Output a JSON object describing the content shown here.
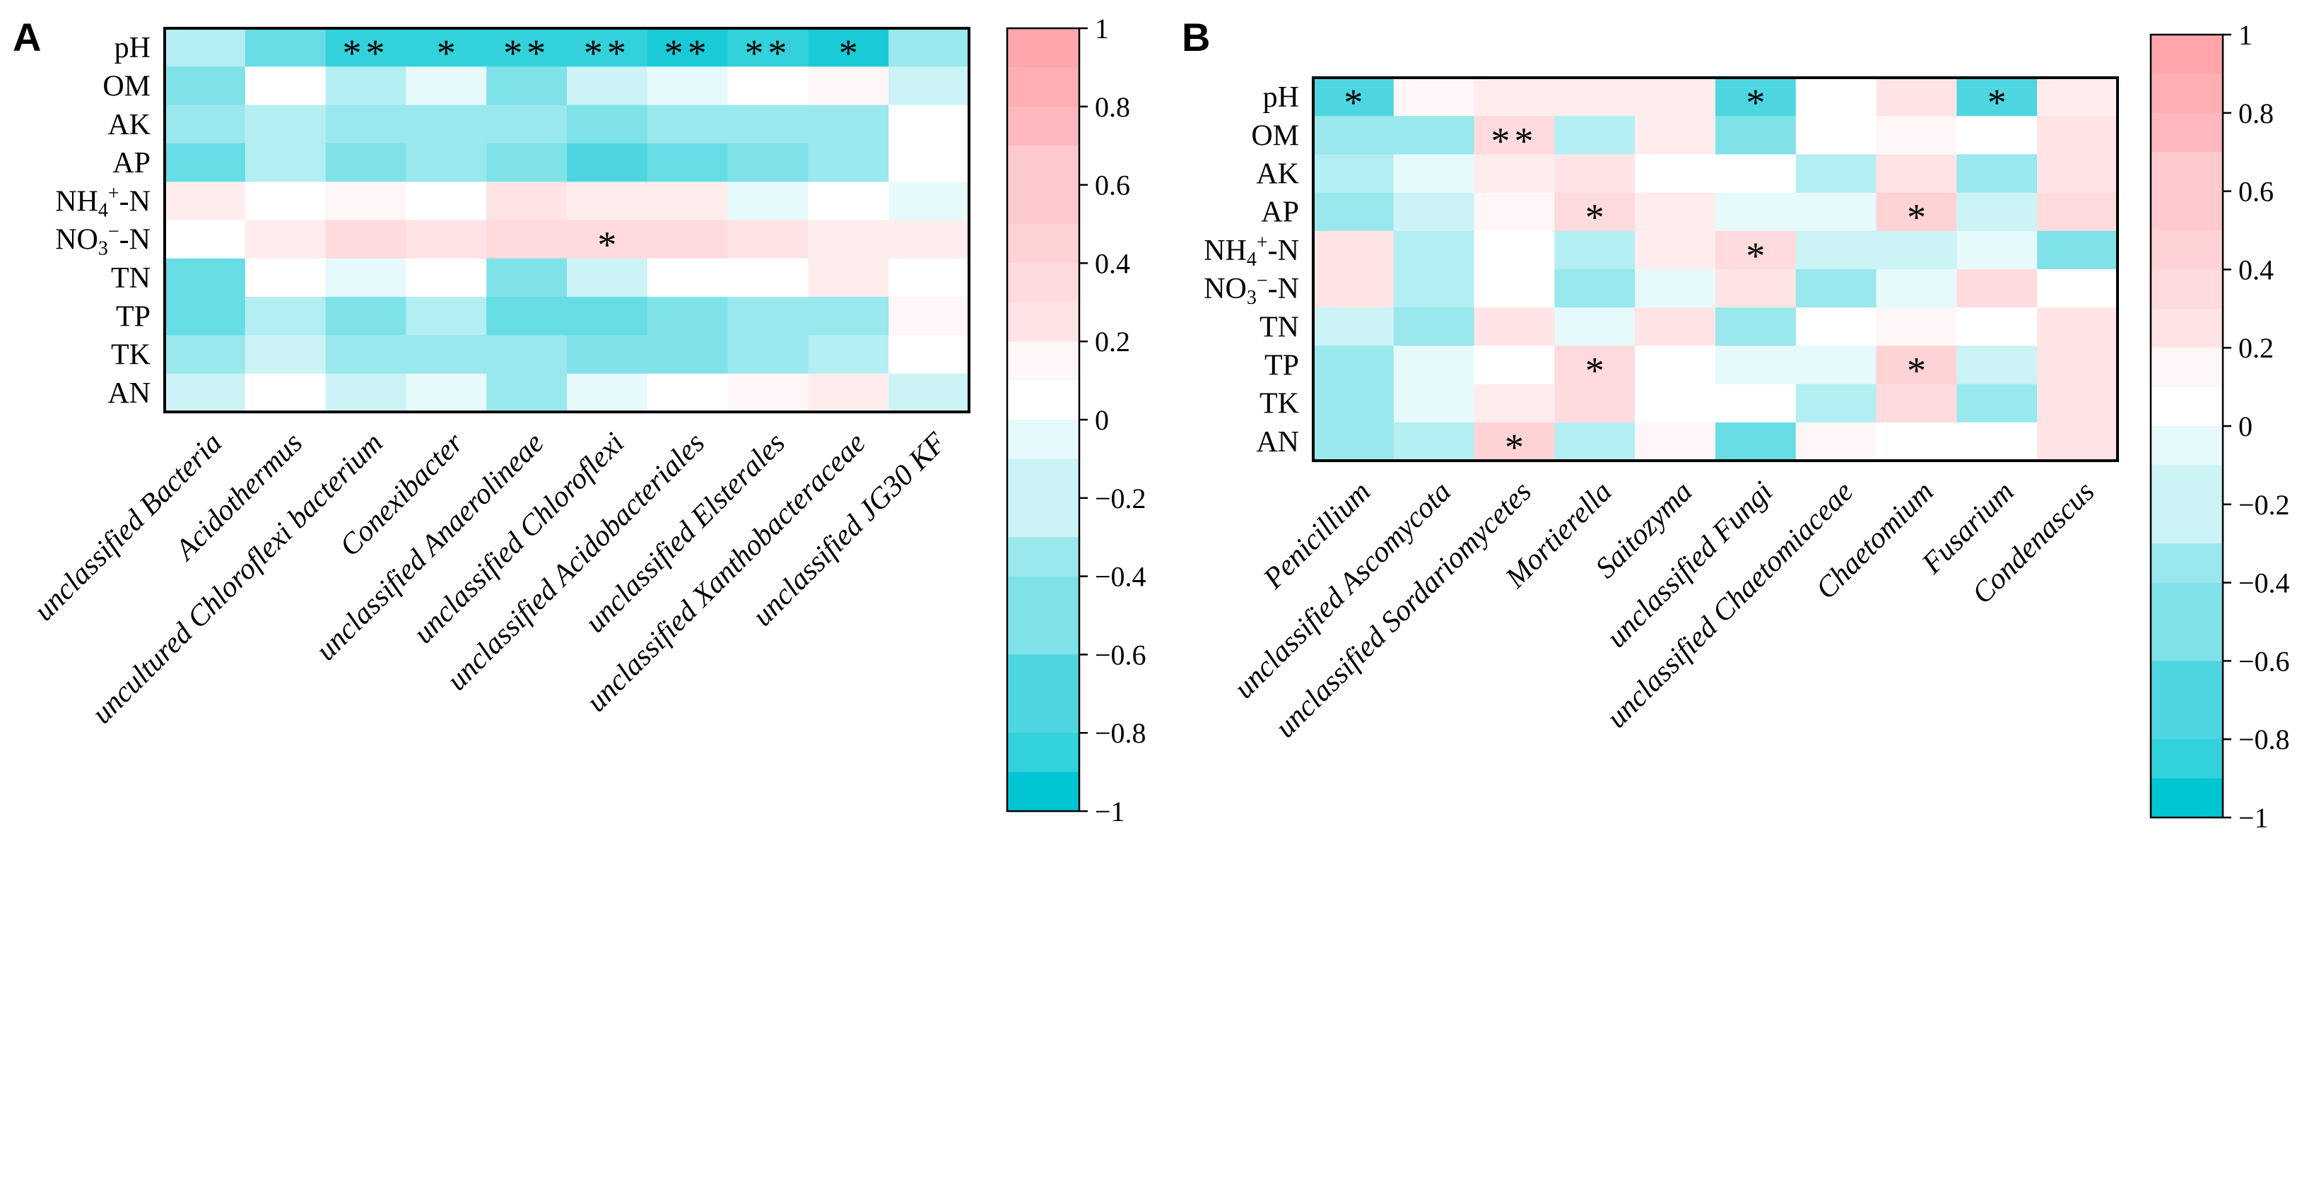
{
  "chart_data": [
    {
      "type": "heatmap",
      "panel_label": "A",
      "rows": [
        "pH",
        "OM",
        "AK",
        "AP",
        "NH4+-N",
        "NO3−-N",
        "TN",
        "TP",
        "TK",
        "AN"
      ],
      "row_labels_rich": [
        [
          {
            "t": "pH"
          }
        ],
        [
          {
            "t": "OM"
          }
        ],
        [
          {
            "t": "AK"
          }
        ],
        [
          {
            "t": "AP"
          }
        ],
        [
          {
            "t": "NH"
          },
          {
            "t": "4",
            "sub": true
          },
          {
            "t": "+",
            "sup": true
          },
          {
            "t": "-N"
          }
        ],
        [
          {
            "t": "NO"
          },
          {
            "t": "3",
            "sub": true
          },
          {
            "t": "−",
            "sup": true
          },
          {
            "t": "-N"
          }
        ],
        [
          {
            "t": "TN"
          }
        ],
        [
          {
            "t": "TP"
          }
        ],
        [
          {
            "t": "TK"
          }
        ],
        [
          {
            "t": "AN"
          }
        ]
      ],
      "columns": [
        "unclassified Bacteria",
        "Acidothermus",
        "uncultured Chloroflexi bacterium",
        "Conexibacter",
        "unclassified Anaerolineae",
        "unclassified Chloroflexi",
        "unclassified Acidobacteriales",
        "unclassified Elsterales",
        "unclassified Xanthobacteraceae",
        "unclassified JG30 KF"
      ],
      "values": [
        [
          -0.35,
          -0.6,
          -0.85,
          -0.8,
          -0.85,
          -0.85,
          -0.9,
          -0.85,
          -0.95,
          -0.4
        ],
        [
          -0.5,
          -0.05,
          -0.35,
          -0.15,
          -0.5,
          -0.2,
          -0.1,
          0.0,
          0.1,
          -0.2
        ],
        [
          -0.4,
          -0.3,
          -0.4,
          -0.4,
          -0.4,
          -0.5,
          -0.45,
          -0.4,
          -0.4,
          0.0
        ],
        [
          -0.65,
          -0.35,
          -0.5,
          -0.4,
          -0.5,
          -0.7,
          -0.6,
          -0.5,
          -0.4,
          0.0
        ],
        [
          0.15,
          0.0,
          0.1,
          0.0,
          0.3,
          0.15,
          0.15,
          -0.1,
          0.0,
          -0.15
        ],
        [
          0.0,
          0.2,
          0.35,
          0.25,
          0.35,
          0.35,
          0.35,
          0.25,
          0.2,
          0.2
        ],
        [
          -0.6,
          0.0,
          -0.1,
          0.0,
          -0.55,
          -0.2,
          0.0,
          0.0,
          0.2,
          -0.05
        ],
        [
          -0.6,
          -0.35,
          -0.55,
          -0.3,
          -0.6,
          -0.65,
          -0.55,
          -0.4,
          -0.45,
          0.1
        ],
        [
          -0.4,
          -0.25,
          -0.45,
          -0.4,
          -0.45,
          -0.55,
          -0.5,
          -0.4,
          -0.35,
          0.0
        ],
        [
          -0.2,
          0.0,
          -0.2,
          -0.1,
          -0.4,
          -0.1,
          0.0,
          0.1,
          0.15,
          -0.2
        ]
      ],
      "significance": [
        [
          "",
          "",
          "**",
          "*",
          "**",
          "**",
          "**",
          "**",
          "*",
          ""
        ],
        [
          "",
          "",
          "",
          "",
          "",
          "",
          "",
          "",
          "",
          ""
        ],
        [
          "",
          "",
          "",
          "",
          "",
          "",
          "",
          "",
          "",
          ""
        ],
        [
          "",
          "",
          "",
          "",
          "",
          "",
          "",
          "",
          "",
          ""
        ],
        [
          "",
          "",
          "",
          "",
          "",
          "",
          "",
          "",
          "",
          ""
        ],
        [
          "",
          "",
          "",
          "",
          "",
          "*",
          "",
          "",
          "",
          ""
        ],
        [
          "",
          "",
          "",
          "",
          "",
          "",
          "",
          "",
          "",
          ""
        ],
        [
          "",
          "",
          "",
          "",
          "",
          "",
          "",
          "",
          "",
          ""
        ],
        [
          "",
          "",
          "",
          "",
          "",
          "",
          "",
          "",
          "",
          ""
        ],
        [
          "",
          "",
          "",
          "",
          "",
          "",
          "",
          "",
          "",
          ""
        ]
      ],
      "colorbar": {
        "range": [
          -1,
          1
        ],
        "ticks": [
          "1",
          "0.8",
          "0.6",
          "0.4",
          "0.2",
          "0",
          "−0.2",
          "−0.4",
          "−0.6",
          "−0.8",
          "−1"
        ]
      },
      "colors": {
        "negative": "#00c5d3",
        "zero": "#ffffff",
        "positive": "#ffa6ac"
      }
    },
    {
      "type": "heatmap",
      "panel_label": "B",
      "rows": [
        "pH",
        "OM",
        "AK",
        "AP",
        "NH4+-N",
        "NO3−-N",
        "TN",
        "TP",
        "TK",
        "AN"
      ],
      "row_labels_rich": [
        [
          {
            "t": "pH"
          }
        ],
        [
          {
            "t": "OM"
          }
        ],
        [
          {
            "t": "AK"
          }
        ],
        [
          {
            "t": "AP"
          }
        ],
        [
          {
            "t": "NH"
          },
          {
            "t": "4",
            "sub": true
          },
          {
            "t": "+",
            "sup": true
          },
          {
            "t": "-N"
          }
        ],
        [
          {
            "t": "NO"
          },
          {
            "t": "3",
            "sub": true
          },
          {
            "t": "−",
            "sup": true
          },
          {
            "t": "-N"
          }
        ],
        [
          {
            "t": "TN"
          }
        ],
        [
          {
            "t": "TP"
          }
        ],
        [
          {
            "t": "TK"
          }
        ],
        [
          {
            "t": "AN"
          }
        ]
      ],
      "columns": [
        "Penicillium",
        "unclassified Ascomycota",
        "unclassified Sordariomycetes",
        "Mortierella",
        "Saitozyma",
        "unclassified Fungi",
        "unclassified Chaetomiaceae",
        "Chaetomium",
        "Fusarium",
        "Condenascus"
      ],
      "values": [
        [
          -0.75,
          0.1,
          0.2,
          0.15,
          0.15,
          -0.7,
          0.0,
          0.3,
          -0.75,
          0.15
        ],
        [
          -0.4,
          -0.4,
          0.35,
          -0.3,
          0.15,
          -0.55,
          0.0,
          0.1,
          -0.05,
          0.3
        ],
        [
          -0.3,
          -0.15,
          0.15,
          0.3,
          0.0,
          0.0,
          -0.3,
          0.3,
          -0.45,
          0.25
        ],
        [
          -0.4,
          -0.2,
          0.1,
          0.4,
          0.15,
          -0.15,
          -0.15,
          0.45,
          -0.2,
          0.35
        ],
        [
          0.3,
          -0.3,
          0.0,
          -0.3,
          0.15,
          0.35,
          -0.25,
          -0.2,
          -0.15,
          -0.55
        ],
        [
          0.25,
          -0.3,
          -0.05,
          -0.4,
          -0.15,
          0.25,
          -0.4,
          -0.1,
          0.35,
          0.0
        ],
        [
          -0.2,
          -0.45,
          0.25,
          -0.15,
          0.3,
          -0.4,
          0.0,
          0.1,
          0.0,
          0.3
        ],
        [
          -0.4,
          -0.1,
          0.0,
          0.4,
          0.0,
          -0.15,
          -0.15,
          0.45,
          -0.2,
          0.3
        ],
        [
          -0.4,
          -0.1,
          0.2,
          0.35,
          0.0,
          0.0,
          -0.35,
          0.35,
          -0.4,
          0.25
        ],
        [
          -0.4,
          -0.3,
          0.45,
          -0.3,
          0.1,
          -0.6,
          0.1,
          -0.05,
          0.0,
          0.3
        ]
      ],
      "significance": [
        [
          "*",
          "",
          "",
          "",
          "",
          "*",
          "",
          "",
          "*",
          ""
        ],
        [
          "",
          "",
          "**",
          "",
          "",
          "",
          "",
          "",
          "",
          ""
        ],
        [
          "",
          "",
          "",
          "",
          "",
          "",
          "",
          "",
          "",
          ""
        ],
        [
          "",
          "",
          "",
          "*",
          "",
          "",
          "",
          "*",
          "",
          ""
        ],
        [
          "",
          "",
          "",
          "",
          "",
          "*",
          "",
          "",
          "",
          ""
        ],
        [
          "",
          "",
          "",
          "",
          "",
          "",
          "",
          "",
          "",
          ""
        ],
        [
          "",
          "",
          "",
          "",
          "",
          "",
          "",
          "",
          "",
          ""
        ],
        [
          "",
          "",
          "",
          "*",
          "",
          "",
          "",
          "*",
          "",
          ""
        ],
        [
          "",
          "",
          "",
          "",
          "",
          "",
          "",
          "",
          "",
          ""
        ],
        [
          "",
          "",
          "*",
          "",
          "",
          "",
          "",
          "",
          "",
          ""
        ]
      ],
      "colorbar": {
        "range": [
          -1,
          1
        ],
        "ticks": [
          "1",
          "0.8",
          "0.6",
          "0.4",
          "0.2",
          "0",
          "−0.2",
          "−0.4",
          "−0.6",
          "−0.8",
          "−1"
        ]
      },
      "colors": {
        "negative": "#00c5d3",
        "zero": "#ffffff",
        "positive": "#ffa6ac"
      }
    }
  ]
}
